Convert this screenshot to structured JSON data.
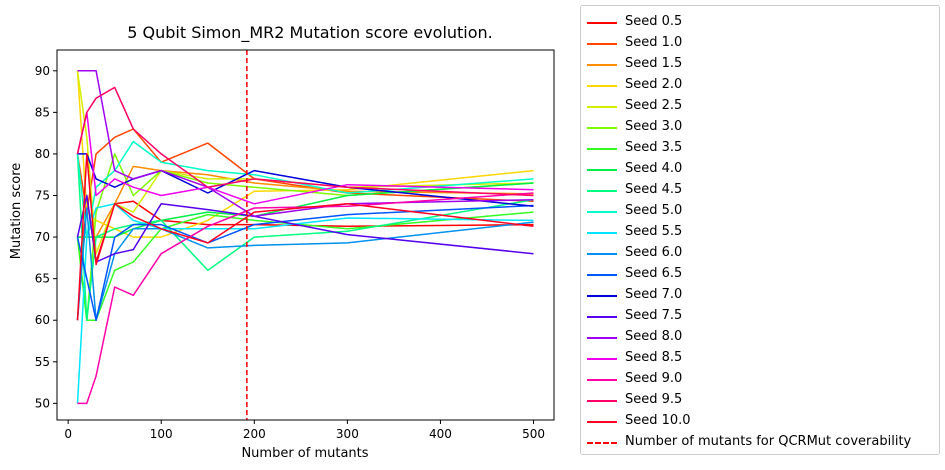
{
  "chart_data": {
    "type": "line",
    "title": "5 Qubit Simon_MR2 Mutation score evolution.",
    "xlabel": "Number of mutants",
    "ylabel": "Mutation score",
    "xlim": [
      -12,
      522
    ],
    "ylim": [
      48,
      92.5
    ],
    "xticks": [
      0,
      100,
      200,
      300,
      400,
      500
    ],
    "yticks": [
      50,
      55,
      60,
      65,
      70,
      75,
      80,
      85,
      90
    ],
    "grid": false,
    "legend_position": "outside-right",
    "x": [
      10,
      20,
      30,
      50,
      70,
      100,
      150,
      200,
      300,
      500
    ],
    "series": [
      {
        "name": "Seed 0.5",
        "color": "#ff0000",
        "values": [
          60,
          75,
          67,
          74,
          74.3,
          72,
          71.5,
          71.5,
          71.3,
          71.5
        ]
      },
      {
        "name": "Seed 1.0",
        "color": "#ff4500",
        "values": [
          80,
          73,
          80,
          82,
          83,
          79,
          81.3,
          77,
          75.3,
          74.3
        ]
      },
      {
        "name": "Seed 1.5",
        "color": "#ff8c00",
        "values": [
          70,
          70,
          70,
          74,
          78.5,
          78,
          77.5,
          76.5,
          75.5,
          75.2
        ]
      },
      {
        "name": "Seed 2.0",
        "color": "#ffd700",
        "values": [
          90,
          73,
          72,
          71,
          70,
          70,
          72,
          75.5,
          75.7,
          78
        ]
      },
      {
        "name": "Seed 2.5",
        "color": "#d4ef00",
        "values": [
          90,
          82,
          68,
          74,
          73,
          78,
          77,
          77,
          76,
          76.5
        ]
      },
      {
        "name": "Seed 3.0",
        "color": "#7cfc00",
        "values": [
          70,
          60,
          73,
          80,
          75,
          78,
          76.5,
          76,
          75,
          76.5
        ]
      },
      {
        "name": "Seed 3.5",
        "color": "#33ff22",
        "values": [
          70,
          60,
          60,
          66,
          67,
          71,
          72.7,
          72,
          71,
          73
        ]
      },
      {
        "name": "Seed 4.0",
        "color": "#00ee44",
        "values": [
          70,
          70,
          70,
          70,
          71,
          72,
          73,
          72.5,
          75,
          76.5
        ]
      },
      {
        "name": "Seed 4.5",
        "color": "#00ff80",
        "values": [
          80,
          60,
          70,
          71,
          71.5,
          72,
          66,
          70,
          70.7,
          74.5
        ]
      },
      {
        "name": "Seed 5.0",
        "color": "#00ffc8",
        "values": [
          80,
          70,
          76,
          78,
          81.5,
          79,
          78,
          77.5,
          75.3,
          77
        ]
      },
      {
        "name": "Seed 5.5",
        "color": "#00e5ff",
        "values": [
          50,
          70,
          73.5,
          74,
          72,
          71,
          71,
          71,
          72.3,
          72
        ]
      },
      {
        "name": "Seed 6.0",
        "color": "#0090ee",
        "values": [
          60,
          73.5,
          60,
          68,
          71,
          71,
          68.7,
          69,
          69.3,
          71.8
        ]
      },
      {
        "name": "Seed 6.5",
        "color": "#0055ff",
        "values": [
          70,
          65,
          60,
          70,
          71.5,
          71.5,
          69.3,
          71.5,
          72.7,
          73.8
        ]
      },
      {
        "name": "Seed 7.0",
        "color": "#0000dd",
        "values": [
          80,
          80,
          77,
          76,
          77,
          78,
          75.3,
          78,
          76,
          73.7
        ]
      },
      {
        "name": "Seed 7.5",
        "color": "#5500ee",
        "values": [
          70,
          75,
          67,
          68,
          68.5,
          74,
          73.3,
          72.5,
          70.3,
          68
        ]
      },
      {
        "name": "Seed 8.0",
        "color": "#a000ee",
        "values": [
          90,
          90,
          90,
          78,
          77,
          78,
          76,
          72.5,
          74,
          74.5
        ]
      },
      {
        "name": "Seed 8.5",
        "color": "#ee00ee",
        "values": [
          80,
          85,
          75,
          77,
          76,
          75,
          76,
          74,
          76.3,
          75.7
        ]
      },
      {
        "name": "Seed 9.0",
        "color": "#ff00aa",
        "values": [
          50,
          50,
          53.3,
          64,
          63,
          68,
          71.3,
          73.5,
          73.7,
          75.3
        ]
      },
      {
        "name": "Seed 9.5",
        "color": "#ff0066",
        "values": [
          80,
          85,
          86.7,
          88,
          83,
          80,
          76,
          77,
          76,
          75
        ]
      },
      {
        "name": "Seed 10.0",
        "color": "#ff0022",
        "values": [
          60,
          80,
          66.7,
          74,
          72.5,
          71,
          69.3,
          73,
          74,
          71.3
        ]
      }
    ],
    "vline": {
      "name": "Number of mutants for QCRMut coverability",
      "x": 192,
      "color": "#ff0000",
      "style": "dashed"
    }
  }
}
